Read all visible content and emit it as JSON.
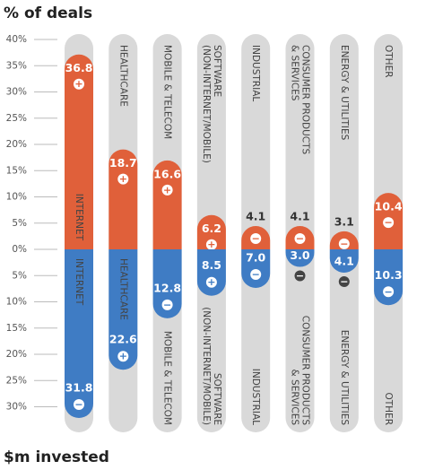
{
  "chart_data": [
    {
      "type": "bar",
      "title": "% of deals",
      "categories": [
        "INTERNET",
        "HEALTHCARE",
        "MOBILE & TELECOM",
        [
          "SOFTWARE",
          "(NON-INTERNET/MOBILE)"
        ],
        "INDUSTRIAL",
        [
          "CONSUMER PRODUCTS",
          "& SERVICES"
        ],
        "ENERGY & UTILITIES",
        "OTHER"
      ],
      "series": [
        {
          "color": "#e0603a",
          "values": [
            36.8,
            18.7,
            16.6,
            6.2,
            4.1,
            4.1,
            3.1,
            10.4
          ],
          "signs": [
            "+",
            "+",
            "+",
            "+",
            "−",
            "−",
            "−",
            "−"
          ]
        }
      ],
      "ylim": [
        0,
        40
      ],
      "yticks": [
        {
          "value": 0,
          "label": "0%"
        },
        {
          "value": 5,
          "label": "5%"
        },
        {
          "value": 10,
          "label": "10%"
        },
        {
          "value": 15,
          "label": "15%"
        },
        {
          "value": 20,
          "label": "20%"
        },
        {
          "value": 25,
          "label": "25%"
        },
        {
          "value": 30,
          "label": "30%"
        },
        {
          "value": 35,
          "label": "35%"
        },
        {
          "value": 40,
          "label": "40%"
        }
      ]
    },
    {
      "type": "bar",
      "title": "$m invested",
      "inverted": true,
      "categories": [
        "INTERNET",
        "HEALTHCARE",
        "MOBILE & TELECOM",
        [
          "SOFTWARE",
          "(NON-INTERNET/MOBILE)"
        ],
        "INDUSTRIAL",
        [
          "CONSUMER PRODUCTS",
          "& SERVICES"
        ],
        "ENERGY & UTILITIES",
        "OTHER"
      ],
      "series": [
        {
          "color": "#3f7cc4",
          "values": [
            31.8,
            22.6,
            12.8,
            8.5,
            7.0,
            3.0,
            4.1,
            10.3
          ],
          "value_labels": [
            "31.8",
            "22.6",
            "12.8",
            "8.5",
            "7.0",
            "3.0",
            "4.1",
            "10.3"
          ],
          "signs": [
            "−",
            "+",
            "−",
            "+",
            "−",
            "−",
            "−",
            "−"
          ]
        }
      ],
      "ylim": [
        0,
        30
      ],
      "yticks": [
        {
          "value": 5,
          "label": "5%"
        },
        {
          "value": 10,
          "label": "10%"
        },
        {
          "value": 15,
          "label": "15%"
        },
        {
          "value": 20,
          "label": "20%"
        },
        {
          "value": 25,
          "label": "25%"
        },
        {
          "value": 30,
          "label": "30%"
        }
      ]
    }
  ]
}
